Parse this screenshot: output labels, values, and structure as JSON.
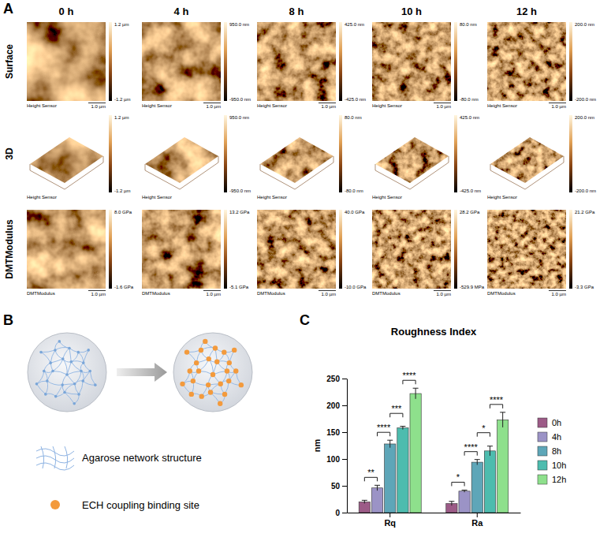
{
  "panel_labels": [
    "A",
    "B",
    "C"
  ],
  "panel_a": {
    "columns": [
      "0 h",
      "4 h",
      "8 h",
      "10 h",
      "12 h"
    ],
    "rows": [
      {
        "name": "Surface",
        "sensor": "Height Sensor",
        "scale": "1.0 µm",
        "colorbars": [
          [
            "1.2 µm",
            "-1.2 µm"
          ],
          [
            "950.0 nm",
            "-950.0 nm"
          ],
          [
            "425.0 nm",
            "-425.0 nm"
          ],
          [
            "80.0 nm",
            "-80.0 nm"
          ],
          [
            "200.0 nm",
            "-200.0 nm"
          ]
        ]
      },
      {
        "name": "3D",
        "sensor": "Height Sensor",
        "colorbars": [
          [
            "1.2 µm",
            "-1.2 µm"
          ],
          [
            "950.0 nm",
            "-950.0 nm"
          ],
          [
            "80.0 nm",
            "-80.0 nm"
          ],
          [
            "425.0 nm",
            "-425.0 nm"
          ],
          [
            "200.0 nm",
            "-200.0 nm"
          ]
        ]
      },
      {
        "name": "DMTModulus",
        "sensor": "DMTModulus",
        "scale": "1.0 µm",
        "colorbars": [
          [
            "8.0 GPa",
            "-1.6 GPa"
          ],
          [
            "13.2 GPa",
            "-5.1 GPa"
          ],
          [
            "40.0 GPa",
            "-10.0 GPa"
          ],
          [
            "28.2 GPa",
            "-529.9 MPa"
          ],
          [
            "21.2 GPa",
            "-3.3 GPa"
          ]
        ]
      }
    ]
  },
  "panel_b": {
    "labels": [
      "Agarose network structure",
      "ECH coupling binding site"
    ]
  },
  "chart_data": {
    "type": "bar",
    "title": "Roughness Index",
    "ylabel": "nm",
    "categories": [
      "Rq",
      "Ra"
    ],
    "series": [
      {
        "name": "0h",
        "color": "#9c5b87",
        "values": [
          20,
          17
        ],
        "errors": [
          3,
          4
        ]
      },
      {
        "name": "4h",
        "color": "#9b93c6",
        "values": [
          46,
          40
        ],
        "errors": [
          5,
          2
        ]
      },
      {
        "name": "8h",
        "color": "#5ea6b8",
        "values": [
          128,
          94
        ],
        "errors": [
          7,
          5
        ]
      },
      {
        "name": "10h",
        "color": "#4dbcae",
        "values": [
          158,
          115
        ],
        "errors": [
          3,
          9
        ]
      },
      {
        "name": "12h",
        "color": "#8ee08c",
        "values": [
          222,
          173
        ],
        "errors": [
          10,
          14
        ]
      }
    ],
    "ylim": [
      0,
      250
    ],
    "yticks": [
      0,
      50,
      100,
      150,
      200,
      250
    ],
    "grid": false,
    "legend": "right",
    "annotations": [
      {
        "category": 0,
        "from": 0,
        "to": 1,
        "label": "**"
      },
      {
        "category": 0,
        "from": 1,
        "to": 2,
        "label": "****"
      },
      {
        "category": 0,
        "from": 2,
        "to": 3,
        "label": "***"
      },
      {
        "category": 0,
        "from": 3,
        "to": 4,
        "label": "****"
      },
      {
        "category": 1,
        "from": 0,
        "to": 1,
        "label": "*"
      },
      {
        "category": 1,
        "from": 1,
        "to": 2,
        "label": "****"
      },
      {
        "category": 1,
        "from": 2,
        "to": 3,
        "label": "*"
      },
      {
        "category": 1,
        "from": 3,
        "to": 4,
        "label": "****"
      }
    ]
  }
}
